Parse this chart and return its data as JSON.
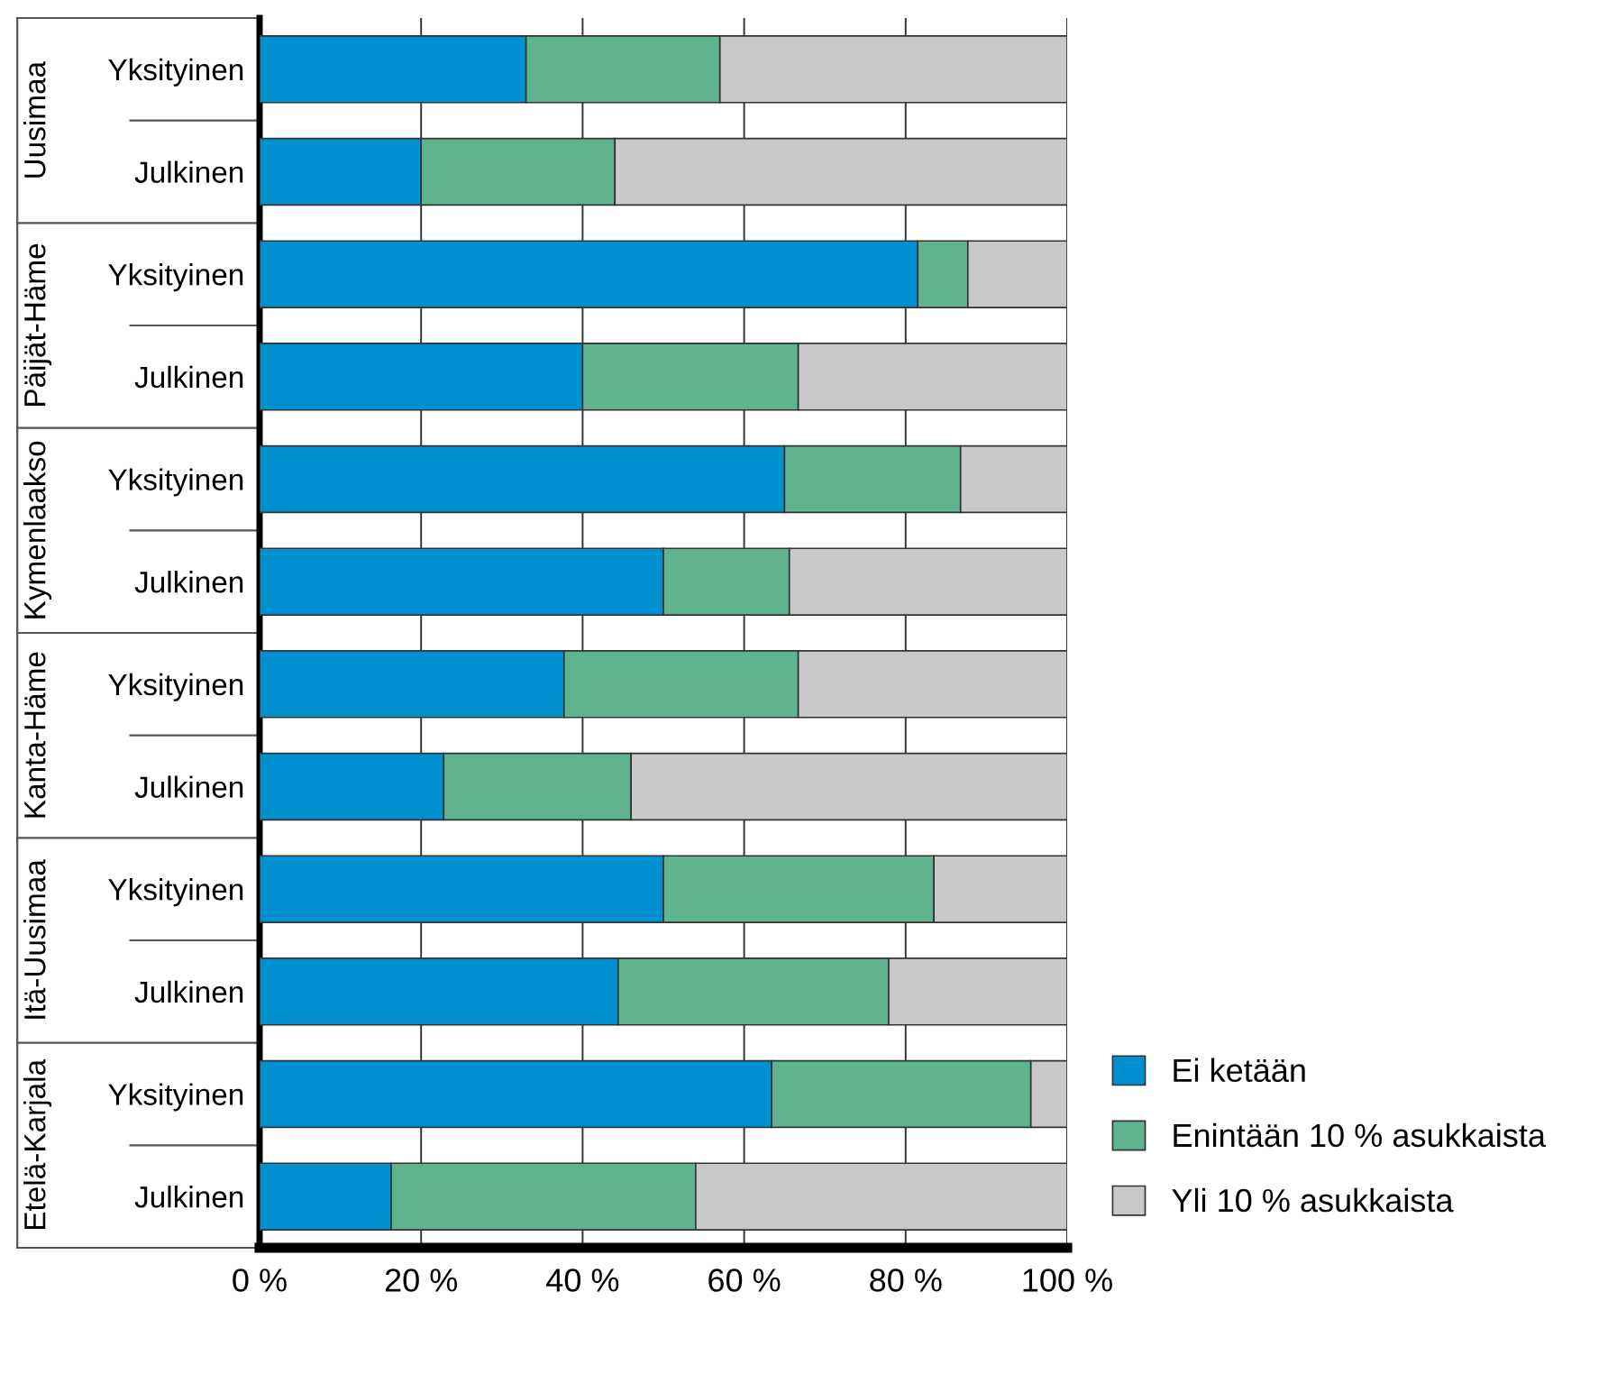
{
  "chart_data": {
    "type": "bar",
    "orientation": "horizontal",
    "stacked": true,
    "categories": [
      "Yksityinen",
      "Julkinen",
      "Yksityinen",
      "Julkinen",
      "Yksityinen",
      "Julkinen",
      "Yksityinen",
      "Julkinen",
      "Yksityinen",
      "Julkinen",
      "Yksityinen",
      "Julkinen"
    ],
    "annotations": [
      "Uusimaa",
      "Päijät-Häme",
      "Kymenlaakso",
      "Kanta-Häme",
      "Itä-Uusimaa",
      "Etelä-Karjala"
    ],
    "series": [
      {
        "name": "Ei ketään",
        "color": "#0090d0",
        "values": [
          33,
          20,
          81.5,
          40,
          65,
          50,
          37.7,
          22.8,
          50,
          44.4,
          63.4,
          16.3
        ]
      },
      {
        "name": "Enintään 10 % asukkaista",
        "color": "#5fb48f",
        "values": [
          24,
          24,
          6.2,
          26.7,
          21.8,
          15.6,
          29,
          23.2,
          33.5,
          33.5,
          32.1,
          37.7
        ]
      },
      {
        "name": "Yli 10 % asukkaista",
        "color": "#c8c8c8",
        "values": [
          43,
          56,
          12.3,
          33.3,
          13.2,
          34.4,
          33.3,
          54,
          16.5,
          22.1,
          4.5,
          46
        ]
      }
    ],
    "xlim": [
      0,
      100
    ],
    "xticks": [
      {
        "value": 0,
        "label": "0 %"
      },
      {
        "value": 20,
        "label": "20 %"
      },
      {
        "value": 40,
        "label": "40 %"
      },
      {
        "value": 60,
        "label": "60 %"
      },
      {
        "value": 80,
        "label": "80 %"
      },
      {
        "value": 100,
        "label": "100 %"
      }
    ],
    "grid": "x",
    "legend": "bottom right"
  }
}
